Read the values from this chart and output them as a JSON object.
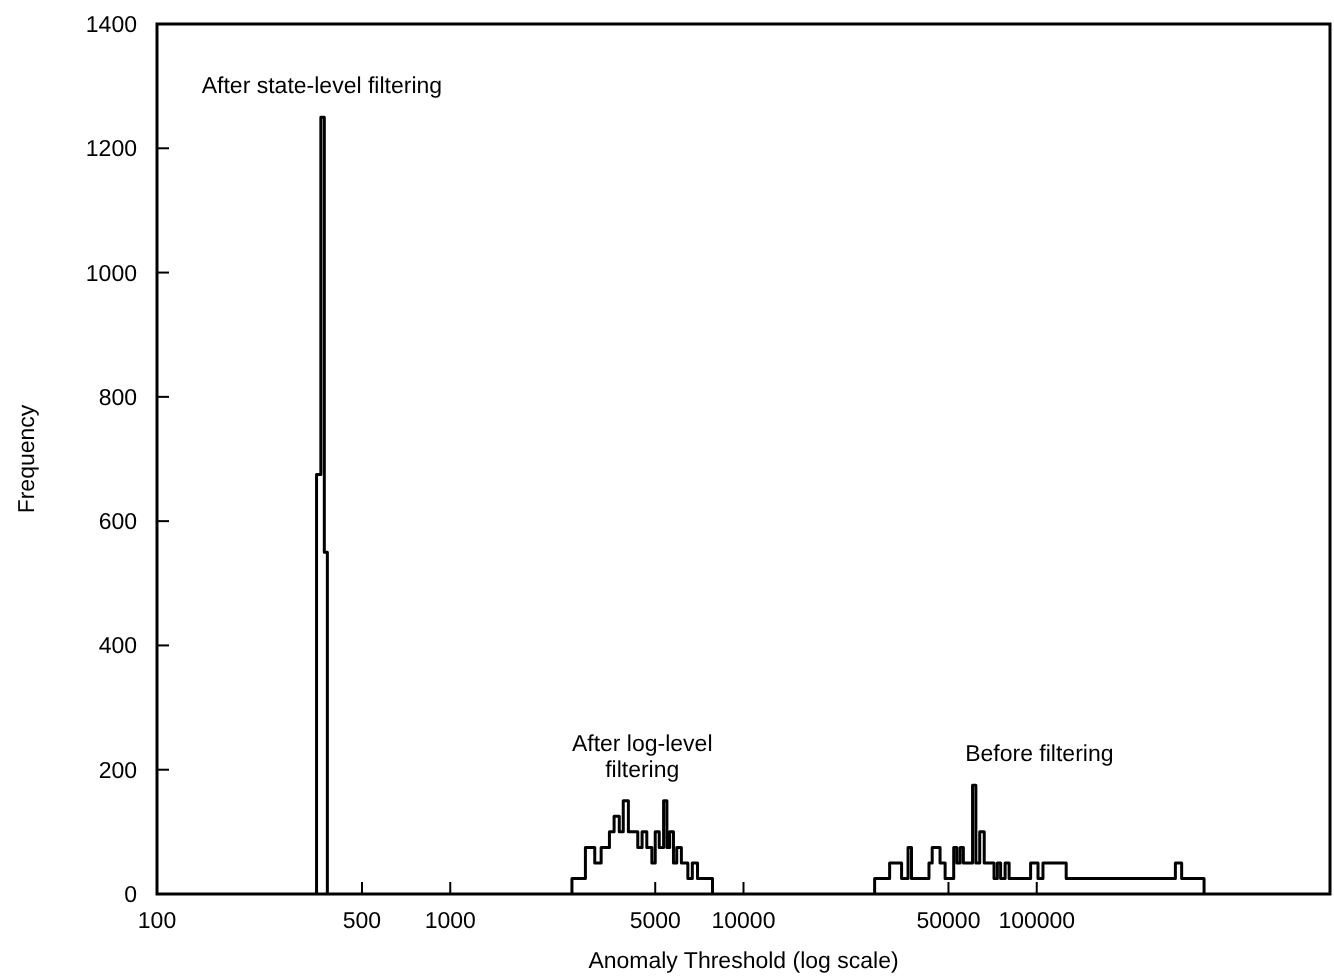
{
  "chart_data": {
    "type": "histogram",
    "xlabel": "Anomaly Threshold (log scale)",
    "ylabel": "Frequency",
    "log": "x",
    "xlim": [
      100,
      1000000
    ],
    "xticks": [
      100,
      500,
      1000,
      5000,
      10000,
      50000,
      100000
    ],
    "ylim": [
      0,
      1400
    ],
    "yticks": [
      0,
      200,
      400,
      600,
      800,
      1000,
      1200,
      1400
    ],
    "color": "#000000",
    "bins": [
      350,
      362,
      372,
      381,
      2600,
      2890,
      3110,
      3270,
      3490,
      3620,
      3770,
      3890,
      4050,
      4180,
      4360,
      4510,
      4680,
      4870,
      5000,
      5160,
      5340,
      5480,
      5600,
      5770,
      5920,
      6140,
      6460,
      6690,
      6970,
      7840,
      28000,
      31500,
      34600,
      36400,
      37400,
      42900,
      44000,
      46800,
      48700,
      52100,
      53400,
      54800,
      56200,
      60400,
      62000,
      63900,
      66200,
      71500,
      73400,
      75300,
      78000,
      80500,
      95300,
      101000,
      105000,
      126000,
      297000,
      312000,
      372000
    ],
    "values": [
      675,
      1250,
      550,
      null,
      25,
      75,
      50,
      75,
      100,
      125,
      100,
      150,
      100,
      100,
      75,
      100,
      75,
      50,
      100,
      75,
      150,
      75,
      100,
      50,
      75,
      50,
      25,
      50,
      25,
      null,
      25,
      50,
      25,
      75,
      25,
      50,
      75,
      50,
      25,
      75,
      50,
      75,
      50,
      175,
      50,
      100,
      50,
      25,
      50,
      25,
      50,
      25,
      50,
      25,
      50,
      25,
      50,
      25
    ],
    "annotations": [
      "After state-level filtering",
      "After log-level\nfiltering",
      "Before filtering"
    ]
  }
}
